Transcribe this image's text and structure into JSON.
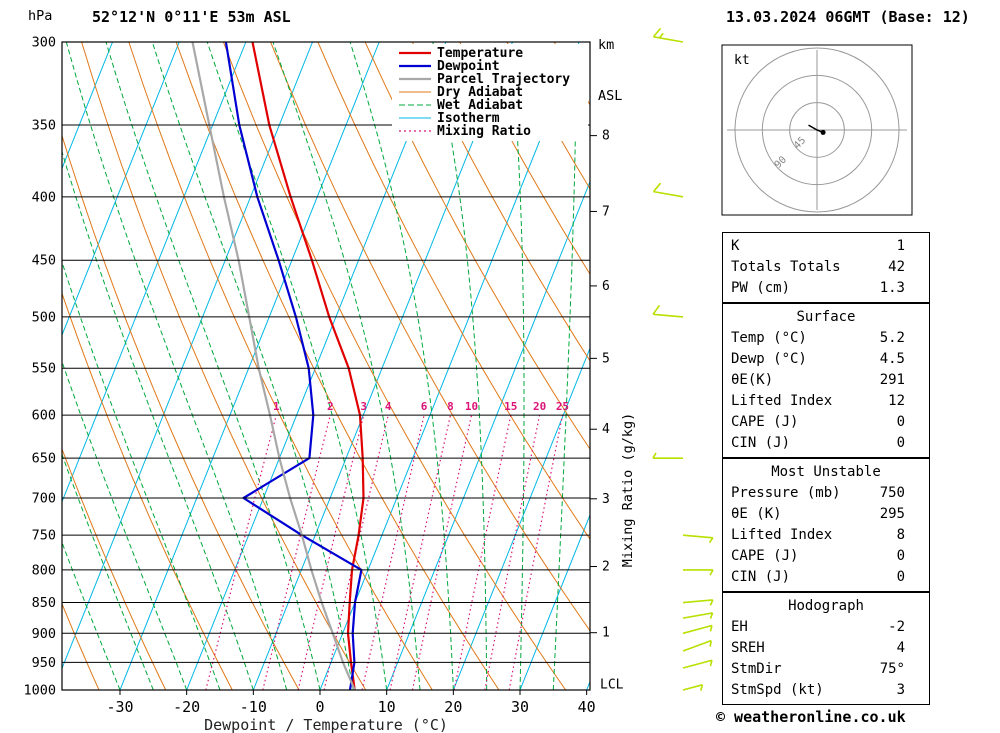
{
  "colors": {
    "temperature": "#e00000",
    "dewpoint": "#0000d2",
    "parcel": "#a8a8a8",
    "dry_adiabat": "#e07818",
    "wet_adiabat": "#00a83c",
    "isotherm": "#00b8e6",
    "mixing_ratio": "#dc1478",
    "wind_barb": "#b8e000",
    "grid": "#000000",
    "hodo_ring": "#999999"
  },
  "header": {
    "pressure_unit": "hPa",
    "station_title": "52°12'N 0°11'E 53m ASL",
    "date_title": "13.03.2024 06GMT (Base: 12)",
    "km_axis_label_1": "km",
    "km_axis_label_2": "ASL"
  },
  "legend": [
    {
      "label": "Temperature",
      "color": "#e00000",
      "style": "solid",
      "width": 2.2
    },
    {
      "label": "Dewpoint",
      "color": "#0000d2",
      "style": "solid",
      "width": 2.2
    },
    {
      "label": "Parcel Trajectory",
      "color": "#a8a8a8",
      "style": "solid",
      "width": 2.2
    },
    {
      "label": "Dry Adiabat",
      "color": "#e07818",
      "style": "solid",
      "width": 1
    },
    {
      "label": "Wet Adiabat",
      "color": "#00a83c",
      "style": "dashed",
      "width": 1
    },
    {
      "label": "Isotherm",
      "color": "#00b8e6",
      "style": "solid",
      "width": 1
    },
    {
      "label": "Mixing Ratio",
      "color": "#dc1478",
      "style": "dotted",
      "width": 1.2
    }
  ],
  "axes": {
    "pressure_ticks": [
      300,
      350,
      400,
      450,
      500,
      550,
      600,
      650,
      700,
      750,
      800,
      850,
      900,
      950,
      1000
    ],
    "temp_ticks": [
      -30,
      -20,
      -10,
      0,
      10,
      20,
      30,
      40
    ],
    "xlabel": "Dewpoint / Temperature (°C)",
    "km_ticks": [
      {
        "km": 8,
        "p": 357
      },
      {
        "km": 7,
        "p": 411
      },
      {
        "km": 6,
        "p": 472
      },
      {
        "km": 5,
        "p": 540
      },
      {
        "km": 4,
        "p": 616
      },
      {
        "km": 3,
        "p": 701
      },
      {
        "km": 2,
        "p": 795
      },
      {
        "km": 1,
        "p": 899
      }
    ],
    "lcl_label": "LCL",
    "lcl_pressure": 990,
    "right_axis_label": "Mixing Ratio (g/kg)",
    "mixing_ratio_values": [
      1,
      2,
      3,
      4,
      6,
      8,
      10,
      15,
      20,
      25
    ]
  },
  "chart_data": {
    "type": "line",
    "title": "Skew-T log-P sounding 52°12'N 0°11'E 53m ASL 13.03.2024 06GMT",
    "xlabel": "Dewpoint / Temperature (°C)",
    "ylabel": "hPa",
    "x_range": [
      -40,
      40
    ],
    "y_range": [
      300,
      1000
    ],
    "background_lines": {
      "isotherm_step_C": 10,
      "dry_adiabat_step_K": 10,
      "wet_adiabat_step_C": 5,
      "mixing_ratio_values": [
        1,
        2,
        3,
        4,
        6,
        8,
        10,
        15,
        20,
        25
      ]
    },
    "series": [
      {
        "name": "Temperature",
        "color": "#e00000",
        "points": [
          [
            1000,
            5.2
          ],
          [
            950,
            3.0
          ],
          [
            900,
            0.8
          ],
          [
            850,
            -0.8
          ],
          [
            800,
            -2.4
          ],
          [
            750,
            -3.5
          ],
          [
            700,
            -5.0
          ],
          [
            650,
            -7.5
          ],
          [
            600,
            -10.5
          ],
          [
            550,
            -15.0
          ],
          [
            500,
            -21.0
          ],
          [
            450,
            -27.0
          ],
          [
            400,
            -34.0
          ],
          [
            350,
            -41.5
          ],
          [
            300,
            -49.0
          ]
        ]
      },
      {
        "name": "Dewpoint",
        "color": "#0000d2",
        "points": [
          [
            1000,
            4.5
          ],
          [
            950,
            3.5
          ],
          [
            900,
            1.5
          ],
          [
            850,
            0.0
          ],
          [
            800,
            -1.0
          ],
          [
            750,
            -12.0
          ],
          [
            700,
            -23.0
          ],
          [
            650,
            -15.5
          ],
          [
            600,
            -17.5
          ],
          [
            550,
            -21.0
          ],
          [
            500,
            -26.0
          ],
          [
            450,
            -32.0
          ],
          [
            400,
            -39.0
          ],
          [
            350,
            -46.0
          ],
          [
            300,
            -53.0
          ]
        ]
      },
      {
        "name": "Parcel Trajectory",
        "color": "#a8a8a8",
        "points": [
          [
            1000,
            5.2
          ],
          [
            950,
            1.8
          ],
          [
            900,
            -1.5
          ],
          [
            850,
            -5.0
          ],
          [
            800,
            -8.5
          ],
          [
            750,
            -12.0
          ],
          [
            700,
            -16.0
          ],
          [
            650,
            -20.0
          ],
          [
            600,
            -24.0
          ],
          [
            550,
            -28.5
          ],
          [
            500,
            -33.0
          ],
          [
            450,
            -38.0
          ],
          [
            400,
            -44.0
          ],
          [
            350,
            -50.5
          ],
          [
            300,
            -58.0
          ]
        ]
      }
    ]
  },
  "wind_barbs": [
    {
      "p": 300,
      "dir": 280,
      "spd": 15
    },
    {
      "p": 400,
      "dir": 280,
      "spd": 10
    },
    {
      "p": 500,
      "dir": 275,
      "spd": 10
    },
    {
      "p": 650,
      "dir": 270,
      "spd": 5
    },
    {
      "p": 750,
      "dir": 95,
      "spd": 5
    },
    {
      "p": 800,
      "dir": 90,
      "spd": 5
    },
    {
      "p": 850,
      "dir": 85,
      "spd": 5
    },
    {
      "p": 875,
      "dir": 80,
      "spd": 5
    },
    {
      "p": 900,
      "dir": 75,
      "spd": 5
    },
    {
      "p": 930,
      "dir": 70,
      "spd": 5
    },
    {
      "p": 960,
      "dir": 75,
      "spd": 5
    },
    {
      "p": 1000,
      "dir": 75,
      "spd": 3
    }
  ],
  "hodograph": {
    "unit_label": "kt",
    "ring_labels": [
      "45",
      "90"
    ],
    "ring_radii_kt": [
      45,
      90,
      135
    ],
    "trace": [
      [
        -14,
        8
      ],
      [
        0,
        0
      ],
      [
        10,
        -4
      ]
    ],
    "storm_dot": [
      10,
      -4
    ]
  },
  "tables": {
    "indices": {
      "rows": [
        {
          "label": "K",
          "value": "1"
        },
        {
          "label": "Totals Totals",
          "value": "42"
        },
        {
          "label": "PW (cm)",
          "value": "1.3"
        }
      ]
    },
    "surface": {
      "title": "Surface",
      "rows": [
        {
          "label": "Temp (°C)",
          "value": "5.2"
        },
        {
          "label": "Dewp (°C)",
          "value": "4.5"
        },
        {
          "label": "θE(K)",
          "value": "291"
        },
        {
          "label": "Lifted Index",
          "value": "12"
        },
        {
          "label": "CAPE (J)",
          "value": "0"
        },
        {
          "label": "CIN (J)",
          "value": "0"
        }
      ]
    },
    "most_unstable": {
      "title": "Most Unstable",
      "rows": [
        {
          "label": "Pressure (mb)",
          "value": "750"
        },
        {
          "label": "θE (K)",
          "value": "295"
        },
        {
          "label": "Lifted Index",
          "value": "8"
        },
        {
          "label": "CAPE (J)",
          "value": "0"
        },
        {
          "label": "CIN (J)",
          "value": "0"
        }
      ]
    },
    "hodograph_table": {
      "title": "Hodograph",
      "rows": [
        {
          "label": "EH",
          "value": "-2"
        },
        {
          "label": "SREH",
          "value": "4"
        },
        {
          "label": "StmDir",
          "value": "75°"
        },
        {
          "label": "StmSpd (kt)",
          "value": "3"
        }
      ]
    }
  },
  "footer": {
    "copyright": "© weatheronline.co.uk"
  }
}
